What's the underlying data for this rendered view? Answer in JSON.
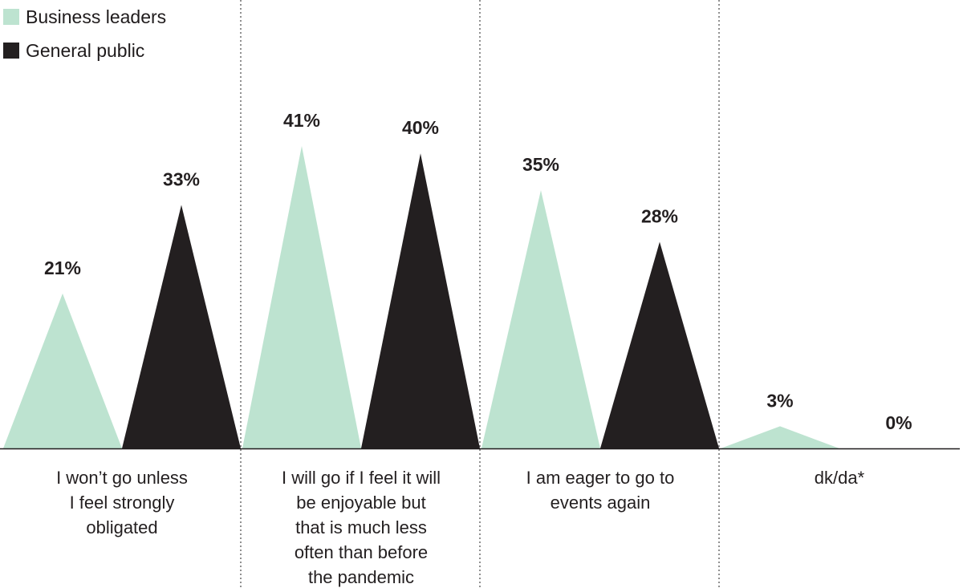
{
  "colors": {
    "series_0": "#bde3d0",
    "series_1": "#231f20",
    "axis": "#1f1b1c",
    "divider": "#555555"
  },
  "chart_data": {
    "type": "bar",
    "mark_shape": "triangle",
    "categories": [
      [
        "I won’t go unless",
        "I feel strongly",
        "obligated"
      ],
      [
        "I will go if I feel it will",
        "be enjoyable but",
        "that is much less",
        "often than before",
        "the pandemic"
      ],
      [
        "I am eager to go to",
        "events again"
      ],
      [
        "dk/da*"
      ]
    ],
    "series": [
      {
        "name": "Business leaders",
        "values": [
          21,
          41,
          35,
          3
        ],
        "labels": [
          "21%",
          "41%",
          "35%",
          "3%"
        ]
      },
      {
        "name": "General public",
        "values": [
          33,
          40,
          28,
          0
        ],
        "labels": [
          "33%",
          "40%",
          "28%",
          "0%"
        ]
      }
    ],
    "ylim": [
      0,
      41
    ],
    "legend_position": "top-left",
    "grid": false
  }
}
